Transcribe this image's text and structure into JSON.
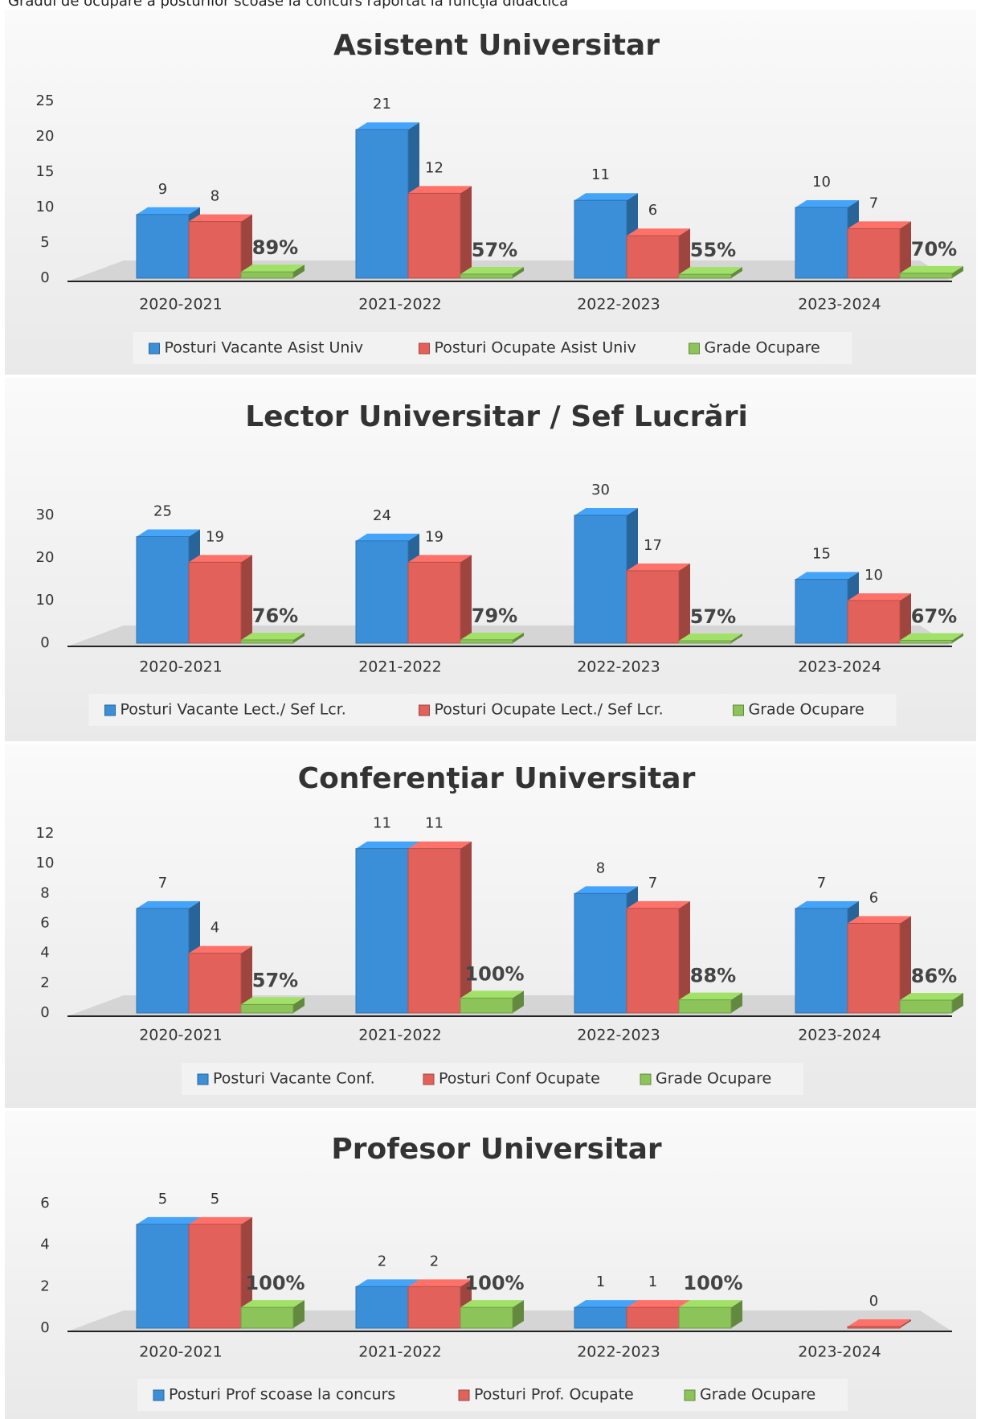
{
  "header": "Gradul de ocupare a posturilor scoase la concurs raportat la funcţia didactică",
  "chart_data": [
    {
      "type": "bar",
      "title": "Asistent Universitar",
      "categories": [
        "2020-2021",
        "2021-2022",
        "2022-2023",
        "2023-2024"
      ],
      "series": [
        {
          "name": "Posturi Vacante Asist Univ",
          "color": "#3b8fd9",
          "values": [
            9,
            21,
            11,
            10
          ]
        },
        {
          "name": "Posturi Ocupate Asist Univ",
          "color": "#e2625b",
          "values": [
            8,
            12,
            6,
            7
          ]
        },
        {
          "name": "Grade Ocupare",
          "color": "#8cc45a",
          "values": [
            0.89,
            0.57,
            0.55,
            0.7
          ],
          "value_labels": [
            "89%",
            "57%",
            "55%",
            "70%"
          ]
        }
      ],
      "ylim": [
        0,
        25
      ],
      "yticks": [
        0,
        5,
        10,
        15,
        20,
        25
      ]
    },
    {
      "type": "bar",
      "title": "Lector Universitar / Sef Lucrări",
      "categories": [
        "2020-2021",
        "2021-2022",
        "2022-2023",
        "2023-2024"
      ],
      "series": [
        {
          "name": "Posturi Vacante Lect./ Sef Lcr.",
          "color": "#3b8fd9",
          "values": [
            25,
            24,
            30,
            15
          ]
        },
        {
          "name": "Posturi Ocupate Lect./ Sef Lcr.",
          "color": "#e2625b",
          "values": [
            19,
            19,
            17,
            10
          ]
        },
        {
          "name": "Grade Ocupare",
          "color": "#8cc45a",
          "values": [
            0.76,
            0.79,
            0.57,
            0.67
          ],
          "value_labels": [
            "76%",
            "79%",
            "57%",
            "67%"
          ]
        }
      ],
      "ylim": [
        0,
        30
      ],
      "yticks": [
        0,
        10,
        20,
        30
      ]
    },
    {
      "type": "bar",
      "title": "Conferenţiar Universitar",
      "categories": [
        "2020-2021",
        "2021-2022",
        "2022-2023",
        "2023-2024"
      ],
      "series": [
        {
          "name": "Posturi Vacante Conf.",
          "color": "#3b8fd9",
          "values": [
            7,
            11,
            8,
            7
          ]
        },
        {
          "name": "Posturi Conf Ocupate",
          "color": "#e2625b",
          "values": [
            4,
            11,
            7,
            6
          ]
        },
        {
          "name": "Grade Ocupare",
          "color": "#8cc45a",
          "values": [
            0.57,
            1.0,
            0.88,
            0.86
          ],
          "value_labels": [
            "57%",
            "100%",
            "88%",
            "86%"
          ]
        }
      ],
      "ylim": [
        0,
        12
      ],
      "yticks": [
        0,
        2,
        4,
        6,
        8,
        10,
        12
      ]
    },
    {
      "type": "bar",
      "title": "Profesor Universitar",
      "categories": [
        "2020-2021",
        "2021-2022",
        "2022-2023",
        "2023-2024"
      ],
      "series": [
        {
          "name": "Posturi Prof scoase la concurs",
          "color": "#3b8fd9",
          "values": [
            5,
            2,
            1,
            null
          ]
        },
        {
          "name": "Posturi Prof. Ocupate",
          "color": "#e2625b",
          "values": [
            5,
            2,
            1,
            0
          ]
        },
        {
          "name": "Grade Ocupare",
          "color": "#8cc45a",
          "values": [
            1.0,
            1.0,
            1.0,
            null
          ],
          "value_labels": [
            "100%",
            "100%",
            "100%",
            null
          ]
        }
      ],
      "ylim": [
        0,
        6
      ],
      "yticks": [
        0,
        2,
        4,
        6
      ]
    }
  ]
}
